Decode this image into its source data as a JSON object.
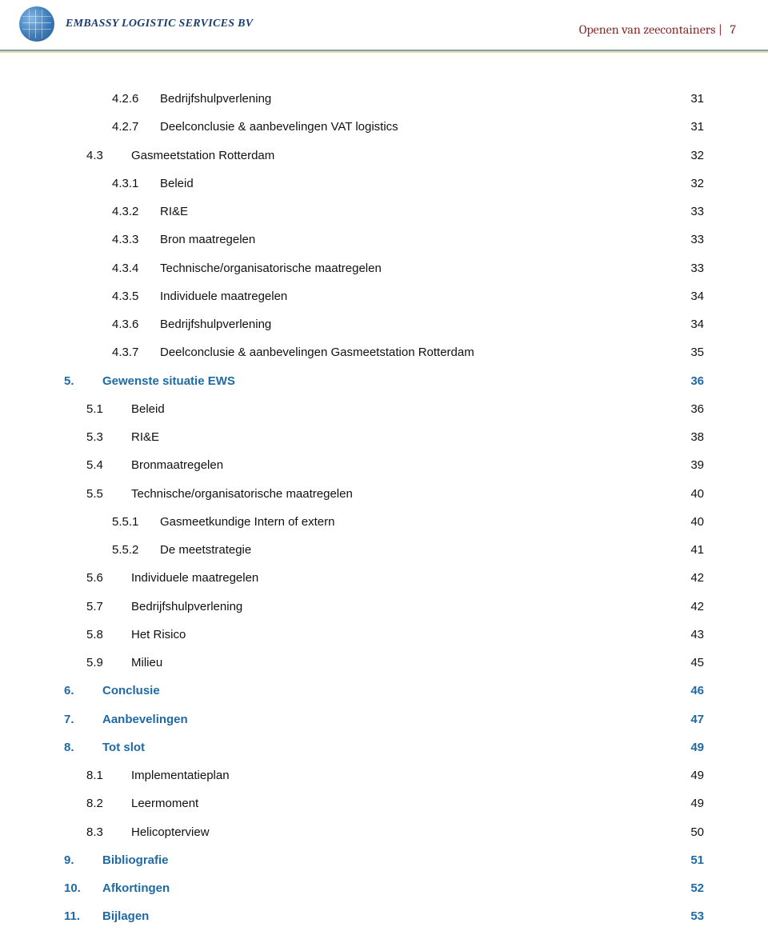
{
  "header": {
    "company_name": "EMBASSY LOGISTIC SERVICES BV",
    "doc_title": "Openen van zeecontainers",
    "page_number": "7"
  },
  "colors": {
    "brand_blue": "#1a3d6e",
    "chapter_blue": "#1f6aa5",
    "header_red": "#8a2b2b",
    "text": "#111111"
  },
  "toc": [
    {
      "level": 3,
      "num": "4.2.6",
      "title": "Bedrijfshulpverlening",
      "page": "31",
      "style": "normal"
    },
    {
      "level": 3,
      "num": "4.2.7",
      "title": "Deelconclusie & aanbevelingen VAT logistics",
      "page": "31",
      "style": "normal"
    },
    {
      "level": 2,
      "num": "4.3",
      "title": "Gasmeetstation Rotterdam",
      "page": "32",
      "style": "normal"
    },
    {
      "level": 3,
      "num": "4.3.1",
      "title": "Beleid",
      "page": "32",
      "style": "normal"
    },
    {
      "level": 3,
      "num": "4.3.2",
      "title": "RI&E",
      "page": "33",
      "style": "normal"
    },
    {
      "level": 3,
      "num": "4.3.3",
      "title": "Bron maatregelen",
      "page": "33",
      "style": "normal"
    },
    {
      "level": 3,
      "num": "4.3.4",
      "title": "Technische/organisatorische maatregelen",
      "page": "33",
      "style": "normal"
    },
    {
      "level": 3,
      "num": "4.3.5",
      "title": "Individuele maatregelen",
      "page": "34",
      "style": "normal"
    },
    {
      "level": 3,
      "num": "4.3.6",
      "title": "Bedrijfshulpverlening",
      "page": "34",
      "style": "normal"
    },
    {
      "level": 3,
      "num": "4.3.7",
      "title": "Deelconclusie & aanbevelingen Gasmeetstation Rotterdam",
      "page": "35",
      "style": "normal"
    },
    {
      "level": 1,
      "num": "5.",
      "title": "Gewenste situatie EWS",
      "page": "36",
      "style": "chapter"
    },
    {
      "level": 2,
      "num": "5.1",
      "title": "Beleid",
      "page": "36",
      "style": "normal"
    },
    {
      "level": 2,
      "num": "5.3",
      "title": "RI&E",
      "page": "38",
      "style": "normal"
    },
    {
      "level": 2,
      "num": "5.4",
      "title": "Bronmaatregelen",
      "page": "39",
      "style": "normal"
    },
    {
      "level": 2,
      "num": "5.5",
      "title": "Technische/organisatorische maatregelen",
      "page": "40",
      "style": "normal"
    },
    {
      "level": 3,
      "num": "5.5.1",
      "title": "Gasmeetkundige Intern of extern",
      "page": "40",
      "style": "normal"
    },
    {
      "level": 3,
      "num": "5.5.2",
      "title": "De meetstrategie",
      "page": "41",
      "style": "normal"
    },
    {
      "level": 2,
      "num": "5.6",
      "title": "Individuele maatregelen",
      "page": "42",
      "style": "normal"
    },
    {
      "level": 2,
      "num": "5.7",
      "title": "Bedrijfshulpverlening",
      "page": "42",
      "style": "normal"
    },
    {
      "level": 2,
      "num": "5.8",
      "title": "Het Risico",
      "page": "43",
      "style": "normal"
    },
    {
      "level": 2,
      "num": "5.9",
      "title": "Milieu",
      "page": "45",
      "style": "normal"
    },
    {
      "level": 1,
      "num": "6.",
      "title": "Conclusie",
      "page": "46",
      "style": "chapter"
    },
    {
      "level": 1,
      "num": "7.",
      "title": "Aanbevelingen",
      "page": "47",
      "style": "chapter"
    },
    {
      "level": 1,
      "num": "8.",
      "title": "Tot slot",
      "page": "49",
      "style": "chapter"
    },
    {
      "level": 2,
      "num": "8.1",
      "title": "Implementatieplan",
      "page": "49",
      "style": "normal"
    },
    {
      "level": 2,
      "num": "8.2",
      "title": "Leermoment",
      "page": "49",
      "style": "normal"
    },
    {
      "level": 2,
      "num": "8.3",
      "title": "Helicopterview",
      "page": "50",
      "style": "normal"
    },
    {
      "level": 1,
      "num": "9.",
      "title": "Bibliografie",
      "page": "51",
      "style": "chapter"
    },
    {
      "level": 1,
      "num": "10.",
      "title": "Afkortingen",
      "page": "52",
      "style": "chapter"
    },
    {
      "level": 1,
      "num": "11.",
      "title": "Bijlagen",
      "page": "53",
      "style": "chapter"
    }
  ]
}
